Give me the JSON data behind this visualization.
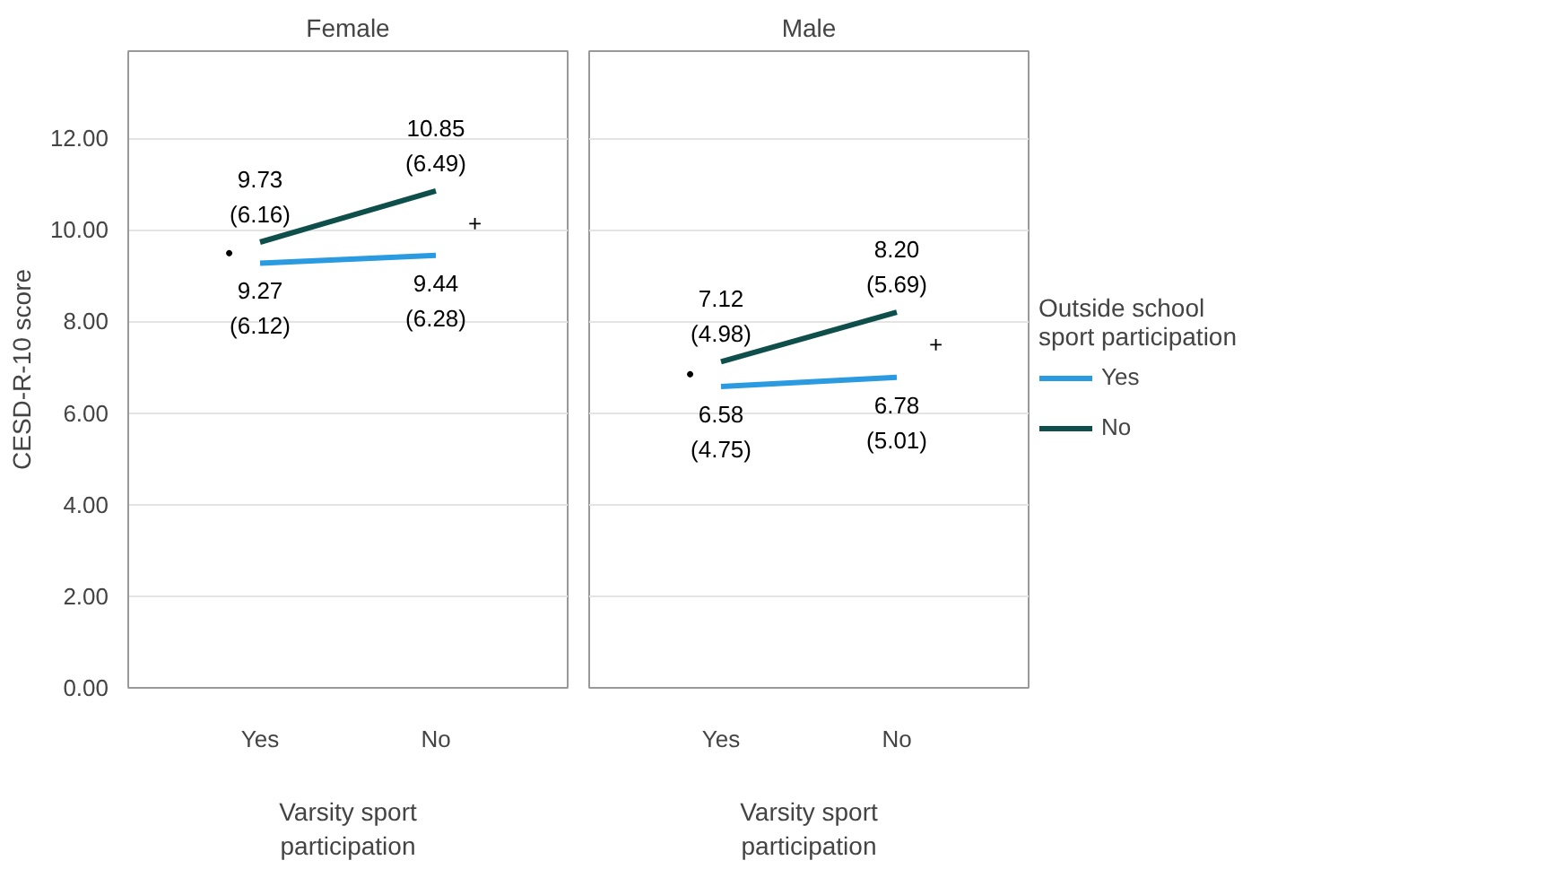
{
  "chart_data": [
    {
      "type": "line",
      "title": "Female",
      "xlabel": "Varsity sport participation",
      "ylabel": "CESD-R-10 score",
      "categories": [
        "Yes",
        "No"
      ],
      "ylim": [
        0,
        13.9
      ],
      "yticks": [
        {
          "value": 0,
          "label": "0.00"
        },
        {
          "value": 2,
          "label": "2.00"
        },
        {
          "value": 4,
          "label": "4.00"
        },
        {
          "value": 6,
          "label": "6.00"
        },
        {
          "value": 8,
          "label": "8.00"
        },
        {
          "value": 10,
          "label": "10.00"
        },
        {
          "value": 12,
          "label": "12.00"
        }
      ],
      "grid": "y",
      "series": [
        {
          "color": "#2a9be0",
          "values": [
            9.27,
            9.44
          ],
          "value_labels": [
            "9.27\n(6.12)",
            "9.44\n(6.28)"
          ]
        },
        {
          "color": "#0e4f4b",
          "values": [
            9.73,
            10.85
          ],
          "value_labels": [
            "9.73\n(6.16)",
            "10.85\n(6.49)"
          ]
        }
      ],
      "annotations": [
        "•",
        "+"
      ]
    },
    {
      "type": "line",
      "title": "Male",
      "xlabel": "Varsity sport participation",
      "categories": [
        "Yes",
        "No"
      ],
      "ylim": [
        0,
        13.9
      ],
      "yticks": [
        {
          "value": 0,
          "label": null
        },
        {
          "value": 2,
          "label": null
        },
        {
          "value": 4,
          "label": null
        },
        {
          "value": 6,
          "label": null
        },
        {
          "value": 8,
          "label": null
        },
        {
          "value": 10,
          "label": null
        },
        {
          "value": 12,
          "label": null
        }
      ],
      "grid": "y",
      "tick_labels": "x",
      "legend": "right",
      "legend_title": "Outside school sport participation",
      "series": [
        {
          "name": "Yes",
          "color": "#2a9be0",
          "values": [
            6.58,
            6.78
          ],
          "value_labels": [
            "6.58\n(4.75)",
            "6.78\n(5.01)"
          ]
        },
        {
          "name": "No",
          "color": "#0e4f4b",
          "values": [
            7.12,
            8.2
          ],
          "value_labels": [
            "7.12\n(4.98)",
            "8.20\n(5.69)"
          ]
        }
      ],
      "annotations": [
        "•",
        "+"
      ]
    }
  ]
}
